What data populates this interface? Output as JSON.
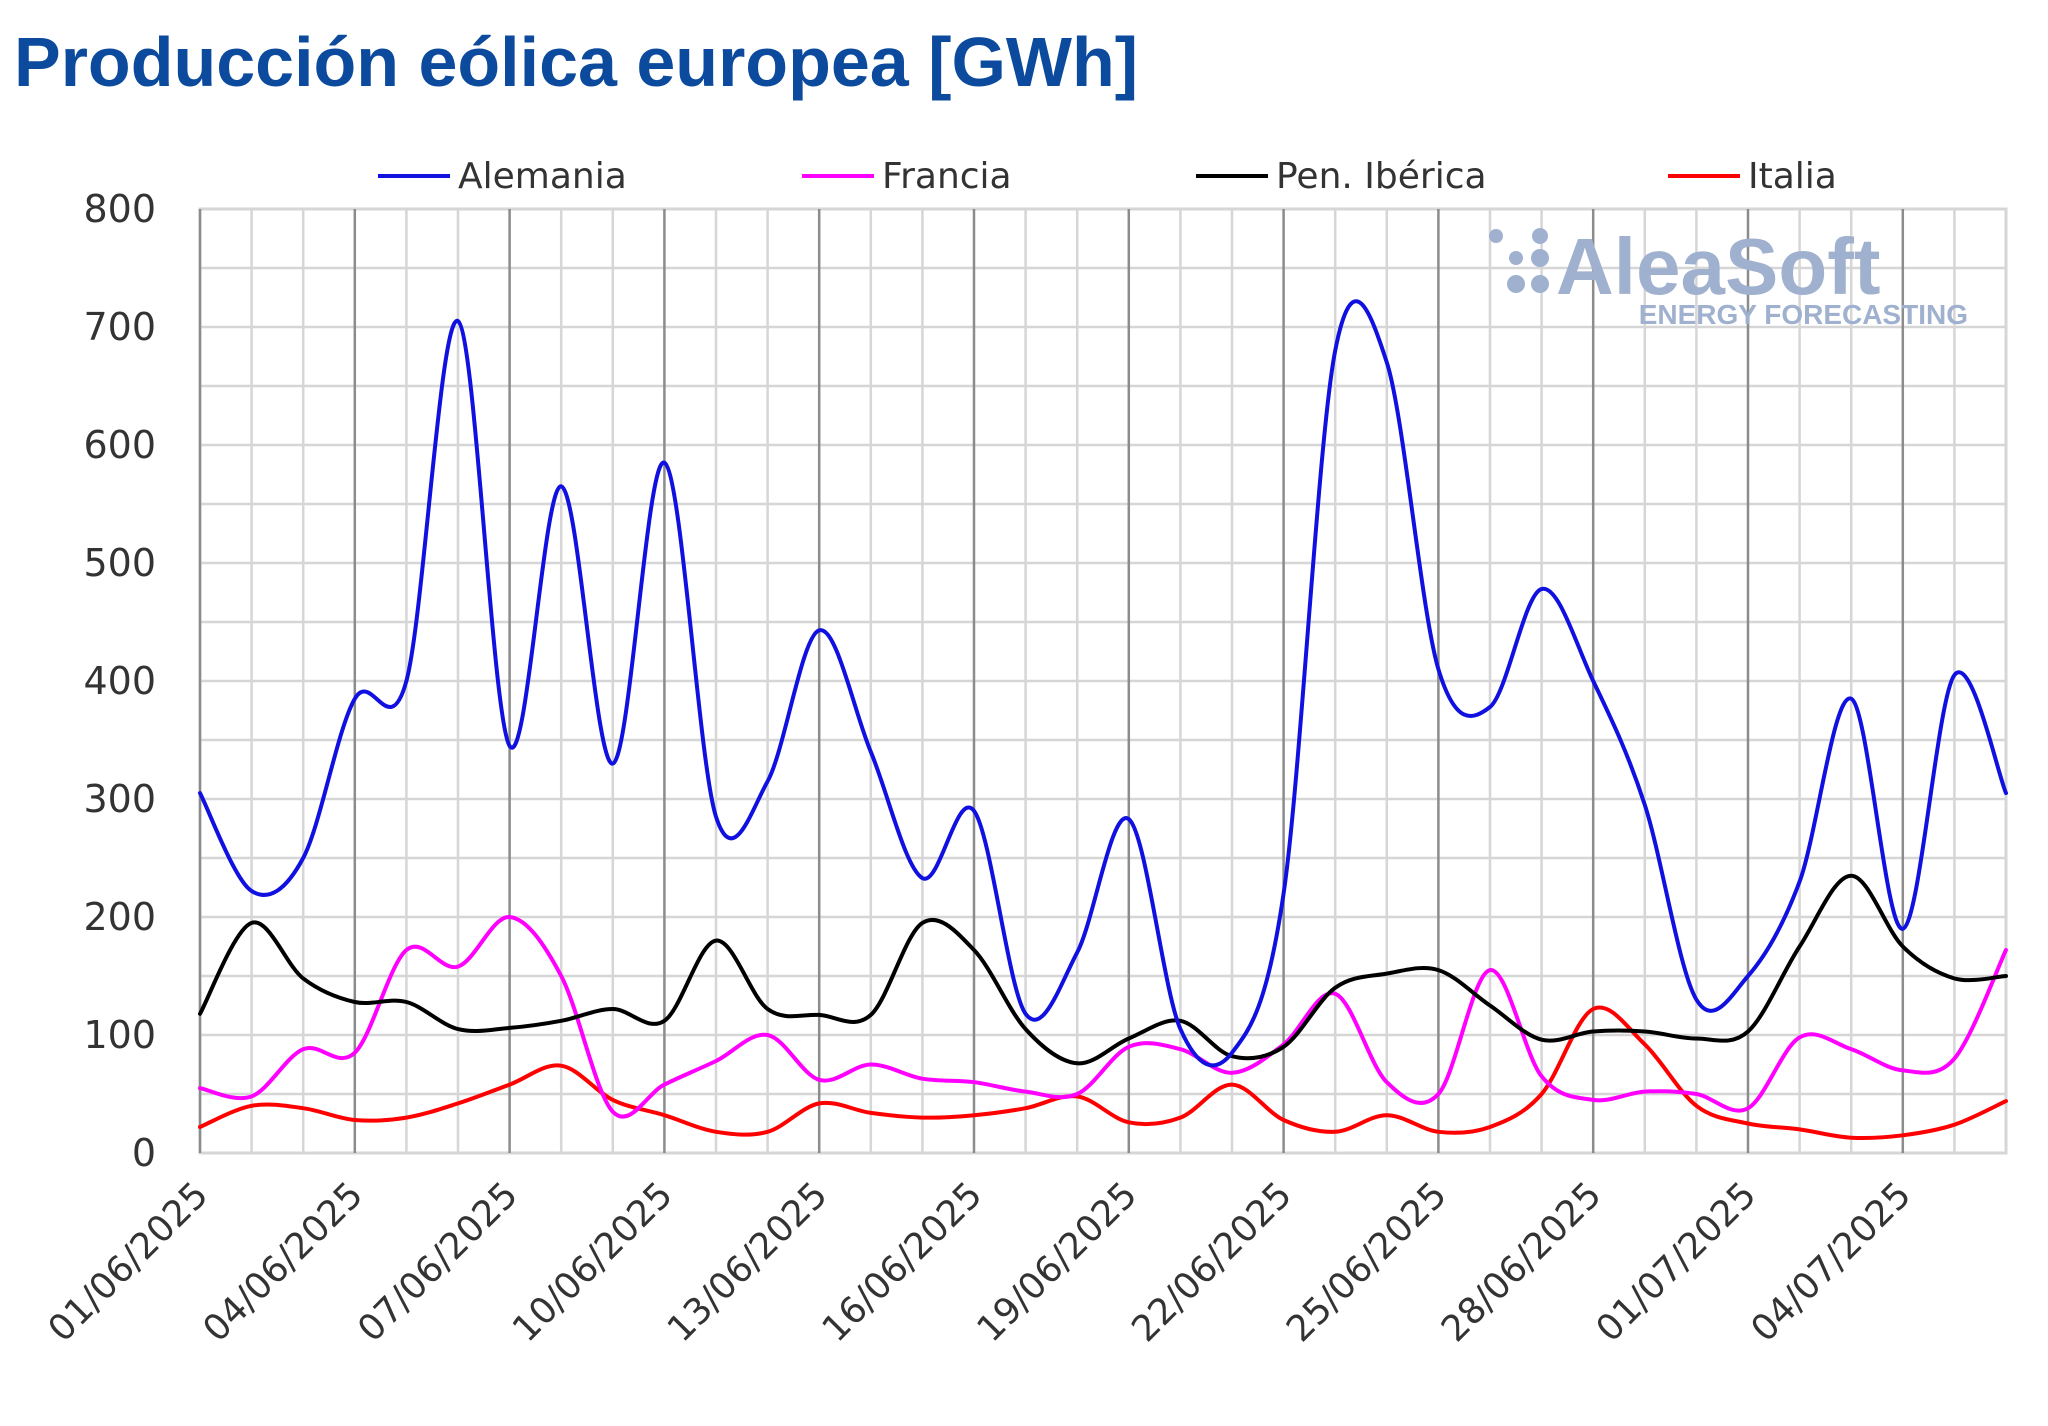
{
  "title": "Producción eólica europea [GWh]",
  "watermark": {
    "main": "AleaSoft",
    "sub": "ENERGY FORECASTING",
    "color": "#9fb1cf"
  },
  "chart_data": {
    "type": "line",
    "title": "Producción eólica europea [GWh]",
    "xlabel": "",
    "ylabel": "",
    "ylim": [
      0,
      800
    ],
    "yticks": [
      0,
      100,
      200,
      300,
      400,
      500,
      600,
      700,
      800
    ],
    "grid": true,
    "legend_position": "top",
    "x": [
      "01/06/2025",
      "02/06/2025",
      "03/06/2025",
      "04/06/2025",
      "05/06/2025",
      "06/06/2025",
      "07/06/2025",
      "08/06/2025",
      "09/06/2025",
      "10/06/2025",
      "11/06/2025",
      "12/06/2025",
      "13/06/2025",
      "14/06/2025",
      "15/06/2025",
      "16/06/2025",
      "17/06/2025",
      "18/06/2025",
      "19/06/2025",
      "20/06/2025",
      "21/06/2025",
      "22/06/2025",
      "23/06/2025",
      "24/06/2025",
      "25/06/2025",
      "26/06/2025",
      "27/06/2025",
      "28/06/2025",
      "29/06/2025",
      "30/06/2025",
      "01/07/2025",
      "02/07/2025",
      "03/07/2025",
      "04/07/2025",
      "05/07/2025",
      "06/07/2025"
    ],
    "x_tick_labels": [
      "01/06/2025",
      "04/06/2025",
      "07/06/2025",
      "10/06/2025",
      "13/06/2025",
      "16/06/2025",
      "19/06/2025",
      "22/06/2025",
      "25/06/2025",
      "28/06/2025",
      "01/07/2025",
      "04/07/2025"
    ],
    "series": [
      {
        "name": "Alemania",
        "color": "#1010e0",
        "values": [
          305,
          222,
          250,
          385,
          400,
          705,
          345,
          565,
          330,
          585,
          285,
          315,
          443,
          340,
          233,
          290,
          118,
          170,
          283,
          105,
          85,
          220,
          680,
          670,
          410,
          378,
          478,
          400,
          295,
          130,
          150,
          230,
          385,
          190,
          405,
          305
        ]
      },
      {
        "name": "Francia",
        "color": "#ff00ff",
        "values": [
          55,
          48,
          88,
          85,
          172,
          158,
          200,
          150,
          35,
          58,
          78,
          100,
          62,
          75,
          63,
          60,
          52,
          50,
          90,
          88,
          68,
          92,
          135,
          60,
          50,
          155,
          65,
          45,
          52,
          50,
          38,
          98,
          88,
          70,
          80,
          172
        ]
      },
      {
        "name": "Pen. Ibérica",
        "color": "#000000",
        "values": [
          118,
          195,
          148,
          128,
          128,
          105,
          106,
          112,
          122,
          112,
          180,
          122,
          117,
          117,
          195,
          172,
          105,
          76,
          97,
          112,
          82,
          90,
          140,
          152,
          155,
          125,
          96,
          103,
          103,
          97,
          103,
          175,
          235,
          175,
          148,
          150
        ]
      },
      {
        "name": "Italia",
        "color": "#ff0000",
        "values": [
          22,
          40,
          38,
          28,
          30,
          42,
          58,
          74,
          45,
          32,
          18,
          18,
          42,
          34,
          30,
          32,
          38,
          48,
          26,
          30,
          58,
          28,
          18,
          32,
          18,
          22,
          50,
          122,
          92,
          40,
          25,
          20,
          13,
          15,
          24,
          44
        ]
      }
    ]
  }
}
